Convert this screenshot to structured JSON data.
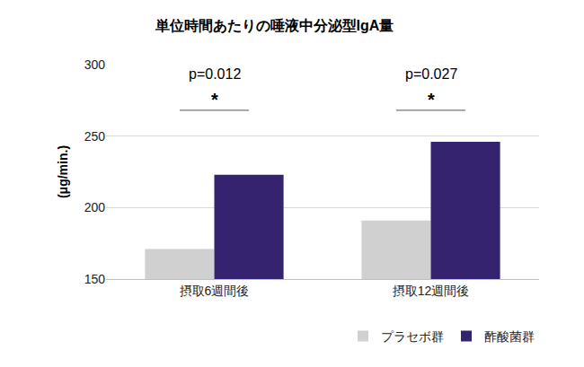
{
  "chart_data": {
    "type": "bar",
    "title": "単位時間あたりの唾液中分泌型IgA量",
    "y_label": "(μg/min.)",
    "categories": [
      "摂取6週間後",
      "摂取12週間後"
    ],
    "series": [
      {
        "name": "プラセボ群",
        "color": "#d0d0d0",
        "values": [
          171,
          191
        ]
      },
      {
        "name": "酢酸菌群",
        "color": "#35236f",
        "values": [
          223,
          246
        ]
      }
    ],
    "ylim": [
      150,
      300
    ],
    "yticks": [
      150,
      200,
      250,
      300
    ],
    "grid": true,
    "legend": "bottom right",
    "annotations": [
      {
        "category": "摂取6週間後",
        "text": "p=0.012",
        "symbol": "*"
      },
      {
        "category": "摂取12週間後",
        "text": "p=0.027",
        "symbol": "*"
      }
    ]
  }
}
